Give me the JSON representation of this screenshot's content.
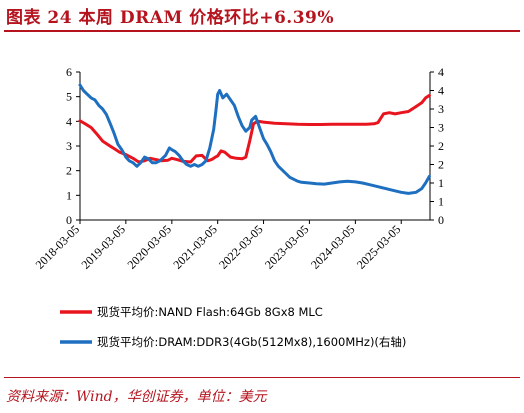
{
  "header": {
    "title": "图表 24   本周 DRAM 价格环比+6.39%"
  },
  "footer": {
    "source": "资料来源：Wind，华创证券，单位：美元"
  },
  "colors": {
    "accent": "#b5141e",
    "nand_series": "#e8141e",
    "dram_series": "#1f6fc0"
  },
  "chart_data": {
    "type": "line",
    "x_ticks": [
      "2018-03-05",
      "2019-03-05",
      "2020-03-05",
      "2021-03-05",
      "2022-03-05",
      "2023-03-05",
      "2024-03-05",
      "2025-03-05"
    ],
    "xlim": [
      "2018-03-05",
      "2025-10-20"
    ],
    "y_left": {
      "ticks": [
        "0",
        "1",
        "2",
        "3",
        "4",
        "5",
        "6"
      ],
      "lim": [
        0,
        6
      ]
    },
    "y_right": {
      "ticks": [
        "0",
        "1",
        "1",
        "2",
        "2",
        "3",
        "3",
        "4",
        "4"
      ],
      "lim": [
        0,
        4
      ]
    },
    "grid": false,
    "legend_placement": "bottom",
    "series": [
      {
        "name": "现货平均价:NAND Flash:64Gb 8Gx8 MLC",
        "axis": "left",
        "color": "#e8141e",
        "points": [
          [
            "2018-03-05",
            4.02
          ],
          [
            "2018-04-15",
            3.9
          ],
          [
            "2018-06-01",
            3.75
          ],
          [
            "2018-07-15",
            3.5
          ],
          [
            "2018-09-01",
            3.2
          ],
          [
            "2018-10-15",
            3.05
          ],
          [
            "2018-12-01",
            2.9
          ],
          [
            "2019-01-15",
            2.75
          ],
          [
            "2019-03-05",
            2.65
          ],
          [
            "2019-05-01",
            2.5
          ],
          [
            "2019-06-15",
            2.35
          ],
          [
            "2019-08-01",
            2.4
          ],
          [
            "2019-09-15",
            2.5
          ],
          [
            "2019-11-01",
            2.45
          ],
          [
            "2019-12-15",
            2.4
          ],
          [
            "2020-02-01",
            2.42
          ],
          [
            "2020-03-05",
            2.5
          ],
          [
            "2020-04-15",
            2.45
          ],
          [
            "2020-06-01",
            2.38
          ],
          [
            "2020-08-01",
            2.35
          ],
          [
            "2020-09-15",
            2.6
          ],
          [
            "2020-11-01",
            2.62
          ],
          [
            "2020-12-15",
            2.4
          ],
          [
            "2021-01-15",
            2.45
          ],
          [
            "2021-02-15",
            2.55
          ],
          [
            "2021-03-05",
            2.6
          ],
          [
            "2021-04-01",
            2.8
          ],
          [
            "2021-05-01",
            2.75
          ],
          [
            "2021-06-15",
            2.55
          ],
          [
            "2021-08-01",
            2.5
          ],
          [
            "2021-09-15",
            2.48
          ],
          [
            "2021-10-15",
            2.55
          ],
          [
            "2021-11-15",
            3.2
          ],
          [
            "2021-12-15",
            3.9
          ],
          [
            "2022-01-15",
            4.0
          ],
          [
            "2022-02-15",
            3.98
          ],
          [
            "2022-03-05",
            3.97
          ],
          [
            "2022-06-01",
            3.92
          ],
          [
            "2022-09-01",
            3.9
          ],
          [
            "2022-12-01",
            3.88
          ],
          [
            "2023-03-05",
            3.87
          ],
          [
            "2023-06-01",
            3.87
          ],
          [
            "2023-09-01",
            3.88
          ],
          [
            "2023-12-01",
            3.88
          ],
          [
            "2024-03-05",
            3.88
          ],
          [
            "2024-06-01",
            3.88
          ],
          [
            "2024-08-01",
            3.9
          ],
          [
            "2024-09-01",
            3.95
          ],
          [
            "2024-10-15",
            4.3
          ],
          [
            "2024-12-01",
            4.35
          ],
          [
            "2025-01-15",
            4.3
          ],
          [
            "2025-03-05",
            4.35
          ],
          [
            "2025-05-01",
            4.4
          ],
          [
            "2025-07-01",
            4.6
          ],
          [
            "2025-08-15",
            4.75
          ],
          [
            "2025-09-15",
            4.95
          ],
          [
            "2025-10-15",
            5.05
          ]
        ]
      },
      {
        "name": "现货平均价:DRAM:DDR3(4Gb(512Mx8),1600MHz)(右轴)",
        "axis": "right",
        "color": "#1f6fc0",
        "points": [
          [
            "2018-03-05",
            3.65
          ],
          [
            "2018-04-01",
            3.5
          ],
          [
            "2018-05-01",
            3.4
          ],
          [
            "2018-06-01",
            3.3
          ],
          [
            "2018-07-01",
            3.25
          ],
          [
            "2018-08-01",
            3.1
          ],
          [
            "2018-09-01",
            3.0
          ],
          [
            "2018-10-01",
            2.85
          ],
          [
            "2018-11-01",
            2.6
          ],
          [
            "2018-12-01",
            2.35
          ],
          [
            "2019-01-01",
            2.05
          ],
          [
            "2019-02-01",
            1.9
          ],
          [
            "2019-03-05",
            1.7
          ],
          [
            "2019-04-01",
            1.6
          ],
          [
            "2019-05-01",
            1.55
          ],
          [
            "2019-06-01",
            1.45
          ],
          [
            "2019-07-01",
            1.55
          ],
          [
            "2019-08-01",
            1.7
          ],
          [
            "2019-09-01",
            1.65
          ],
          [
            "2019-10-01",
            1.55
          ],
          [
            "2019-11-01",
            1.55
          ],
          [
            "2019-12-01",
            1.6
          ],
          [
            "2020-01-15",
            1.75
          ],
          [
            "2020-02-15",
            1.95
          ],
          [
            "2020-03-05",
            1.9
          ],
          [
            "2020-04-01",
            1.85
          ],
          [
            "2020-05-01",
            1.75
          ],
          [
            "2020-06-01",
            1.6
          ],
          [
            "2020-07-01",
            1.5
          ],
          [
            "2020-08-01",
            1.45
          ],
          [
            "2020-09-01",
            1.5
          ],
          [
            "2020-10-01",
            1.45
          ],
          [
            "2020-11-01",
            1.5
          ],
          [
            "2020-12-01",
            1.6
          ],
          [
            "2021-01-01",
            1.95
          ],
          [
            "2021-02-01",
            2.45
          ],
          [
            "2021-02-20",
            3.0
          ],
          [
            "2021-03-05",
            3.4
          ],
          [
            "2021-03-20",
            3.5
          ],
          [
            "2021-04-15",
            3.3
          ],
          [
            "2021-05-15",
            3.4
          ],
          [
            "2021-06-15",
            3.25
          ],
          [
            "2021-07-15",
            3.1
          ],
          [
            "2021-08-15",
            2.8
          ],
          [
            "2021-09-15",
            2.55
          ],
          [
            "2021-10-15",
            2.4
          ],
          [
            "2021-11-15",
            2.5
          ],
          [
            "2021-12-01",
            2.7
          ],
          [
            "2022-01-01",
            2.8
          ],
          [
            "2022-02-01",
            2.5
          ],
          [
            "2022-03-05",
            2.2
          ],
          [
            "2022-04-01",
            2.05
          ],
          [
            "2022-05-01",
            1.85
          ],
          [
            "2022-06-01",
            1.6
          ],
          [
            "2022-07-01",
            1.45
          ],
          [
            "2022-08-01",
            1.35
          ],
          [
            "2022-09-01",
            1.25
          ],
          [
            "2022-10-01",
            1.15
          ],
          [
            "2022-11-01",
            1.1
          ],
          [
            "2022-12-01",
            1.05
          ],
          [
            "2023-01-01",
            1.02
          ],
          [
            "2023-03-05",
            1.0
          ],
          [
            "2023-05-01",
            0.98
          ],
          [
            "2023-07-01",
            0.97
          ],
          [
            "2023-09-01",
            1.0
          ],
          [
            "2023-11-01",
            1.03
          ],
          [
            "2024-01-01",
            1.05
          ],
          [
            "2024-03-05",
            1.03
          ],
          [
            "2024-05-01",
            1.0
          ],
          [
            "2024-07-01",
            0.95
          ],
          [
            "2024-09-01",
            0.9
          ],
          [
            "2024-11-01",
            0.85
          ],
          [
            "2025-01-01",
            0.8
          ],
          [
            "2025-03-05",
            0.75
          ],
          [
            "2025-05-01",
            0.72
          ],
          [
            "2025-07-01",
            0.75
          ],
          [
            "2025-08-15",
            0.85
          ],
          [
            "2025-09-15",
            1.0
          ],
          [
            "2025-10-15",
            1.18
          ]
        ]
      }
    ]
  }
}
